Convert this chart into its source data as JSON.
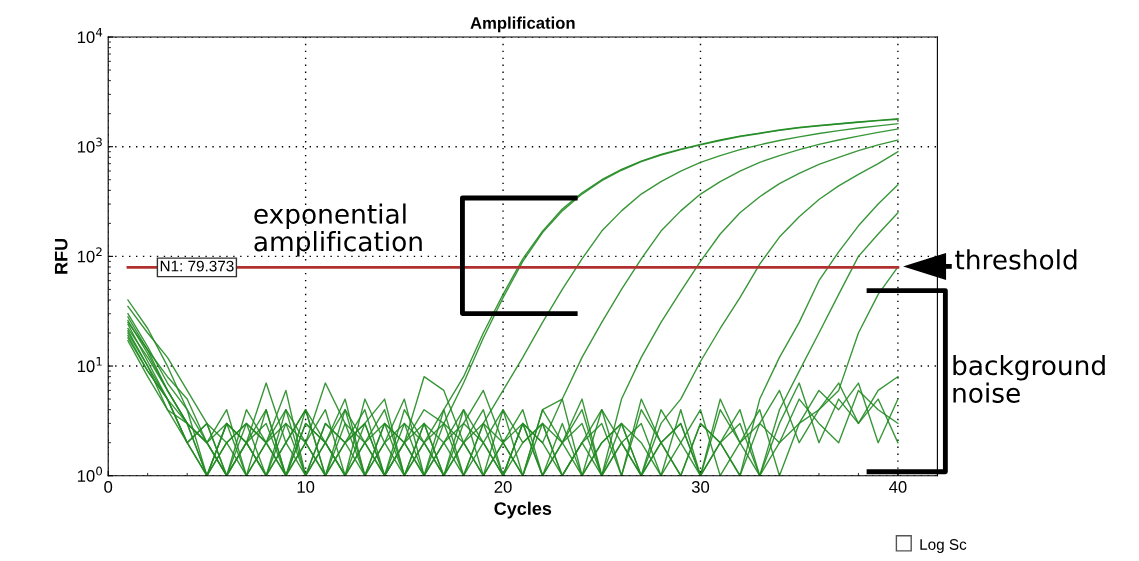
{
  "chart_data": {
    "type": "line",
    "title": "Amplification",
    "xlabel": "Cycles",
    "ylabel": "RFU",
    "log": "y",
    "grid": true,
    "line_style": "solid",
    "x": [
      1,
      2,
      3,
      4,
      5,
      6,
      7,
      8,
      9,
      10,
      11,
      12,
      13,
      14,
      15,
      16,
      17,
      18,
      19,
      20,
      21,
      22,
      23,
      24,
      25,
      26,
      27,
      28,
      29,
      30,
      31,
      32,
      33,
      34,
      35,
      36,
      37,
      38,
      39,
      40
    ],
    "xlim": [
      0,
      42
    ],
    "xticks": [
      0,
      10,
      20,
      30,
      40
    ],
    "ylim": [
      1,
      10000
    ],
    "yticks": [
      {
        "value": 1,
        "label": "10$^{0}$"
      },
      {
        "value": 10,
        "label": "10$^{1}$"
      },
      {
        "value": 100,
        "label": "10$^{2}$"
      },
      {
        "value": 1000,
        "label": "10$^{3}$"
      },
      {
        "value": 10000,
        "label": "10$^{4}$"
      }
    ],
    "ref_lines": [
      {
        "axis": "y",
        "value": 79.373,
        "label": "N1: 79.373",
        "color": "#b03030"
      }
    ],
    "annotations": [
      "exponential amplification",
      "threshold",
      "background noise",
      "Log Sc"
    ],
    "series": [
      {
        "color": "#228b22",
        "values": [
          30,
          15,
          7,
          4,
          2,
          3,
          1,
          2,
          4,
          1,
          3,
          2,
          1,
          2,
          3,
          1,
          4,
          8,
          20,
          45,
          95,
          170,
          270,
          380,
          500,
          620,
          740,
          850,
          950,
          1050,
          1150,
          1250,
          1330,
          1420,
          1500,
          1560,
          1620,
          1680,
          1740,
          1800
        ]
      },
      {
        "color": "#228b22",
        "values": [
          28,
          14,
          6,
          3,
          1,
          2,
          3,
          1,
          2,
          4,
          1,
          2,
          3,
          5,
          1,
          2,
          3,
          7,
          18,
          42,
          90,
          165,
          260,
          370,
          490,
          610,
          730,
          840,
          940,
          1040,
          1140,
          1240,
          1320,
          1410,
          1490,
          1550,
          1610,
          1670,
          1730,
          1780
        ]
      },
      {
        "color": "#228b22",
        "values": [
          22,
          12,
          6,
          3,
          2,
          1,
          4,
          2,
          1,
          3,
          2,
          1,
          2,
          4,
          1,
          3,
          2,
          1,
          3,
          6,
          12,
          25,
          50,
          95,
          170,
          260,
          370,
          480,
          600,
          720,
          830,
          940,
          1040,
          1140,
          1230,
          1320,
          1400,
          1480,
          1550,
          1620
        ]
      },
      {
        "color": "#228b22",
        "values": [
          20,
          10,
          5,
          2,
          1,
          3,
          2,
          4,
          1,
          2,
          1,
          3,
          2,
          1,
          4,
          2,
          1,
          3,
          2,
          4,
          1,
          4,
          5,
          12,
          25,
          50,
          95,
          170,
          260,
          370,
          480,
          600,
          720,
          830,
          940,
          1050,
          1150,
          1250,
          1350,
          1450
        ]
      },
      {
        "color": "#228b22",
        "values": [
          26,
          13,
          6,
          3,
          2,
          4,
          1,
          2,
          3,
          1,
          2,
          5,
          1,
          3,
          2,
          1,
          2,
          4,
          1,
          2,
          3,
          1,
          2,
          4,
          1,
          5,
          12,
          25,
          48,
          90,
          160,
          250,
          350,
          460,
          570,
          690,
          800,
          920,
          1040,
          1150
        ]
      },
      {
        "color": "#228b22",
        "values": [
          24,
          11,
          5,
          2,
          3,
          1,
          2,
          1,
          3,
          2,
          4,
          1,
          2,
          3,
          1,
          2,
          4,
          1,
          3,
          2,
          1,
          3,
          2,
          1,
          4,
          2,
          1,
          3,
          5,
          11,
          22,
          42,
          85,
          150,
          230,
          330,
          440,
          560,
          700,
          900
        ]
      },
      {
        "color": "#228b22",
        "values": [
          21,
          10,
          4,
          3,
          1,
          2,
          3,
          2,
          1,
          4,
          2,
          1,
          3,
          1,
          2,
          3,
          1,
          2,
          4,
          1,
          3,
          2,
          1,
          2,
          3,
          1,
          4,
          2,
          1,
          3,
          2,
          1,
          5,
          12,
          25,
          60,
          110,
          190,
          300,
          450
        ]
      },
      {
        "color": "#228b22",
        "values": [
          19,
          9,
          5,
          2,
          1,
          3,
          2,
          1,
          2,
          1,
          3,
          2,
          4,
          1,
          2,
          1,
          3,
          2,
          1,
          2,
          4,
          1,
          3,
          1,
          2,
          3,
          1,
          2,
          3,
          1,
          2,
          4,
          1,
          4,
          9,
          20,
          45,
          100,
          160,
          250
        ]
      },
      {
        "color": "#228b22",
        "values": [
          17,
          8,
          4,
          2,
          3,
          1,
          2,
          3,
          1,
          2,
          1,
          4,
          2,
          1,
          3,
          2,
          1,
          2,
          3,
          1,
          2,
          3,
          1,
          2,
          1,
          2,
          3,
          1,
          2,
          4,
          1,
          2,
          3,
          2,
          3,
          4,
          6,
          20,
          45,
          80
        ]
      },
      {
        "color": "#228b22",
        "values": [
          35,
          20,
          12,
          6,
          3,
          2,
          1,
          4,
          1,
          3,
          2,
          1,
          5,
          2,
          1,
          3,
          1,
          4,
          2,
          1,
          3,
          1,
          2,
          5,
          1,
          3,
          2,
          1,
          4,
          1,
          2,
          3,
          1,
          2,
          5,
          3,
          2,
          6,
          4,
          3
        ]
      },
      {
        "color": "#228b22",
        "values": [
          25,
          14,
          8,
          5,
          2,
          1,
          3,
          2,
          6,
          1,
          2,
          4,
          1,
          3,
          2,
          8,
          6,
          2,
          1,
          4,
          2,
          3,
          1,
          2,
          4,
          1,
          5,
          2,
          1,
          3,
          2,
          1,
          3,
          6,
          2,
          4,
          7,
          3,
          5,
          2
        ]
      },
      {
        "color": "#228b22",
        "values": [
          40,
          22,
          10,
          4,
          1,
          3,
          2,
          1,
          4,
          2,
          7,
          3,
          1,
          2,
          5,
          1,
          2,
          3,
          6,
          2,
          1,
          4,
          2,
          3,
          1,
          2,
          1,
          4,
          2,
          1,
          5,
          2,
          4,
          1,
          3,
          6,
          4,
          7,
          2,
          5
        ]
      },
      {
        "color": "#228b22",
        "values": [
          18,
          9,
          5,
          3,
          2,
          1,
          2,
          7,
          2,
          4,
          1,
          2,
          3,
          1,
          2,
          4,
          3,
          1,
          2,
          1,
          3,
          2,
          5,
          1,
          2,
          3,
          1,
          2,
          3,
          1,
          4,
          2,
          1,
          3,
          7,
          2,
          5,
          3,
          6,
          8
        ]
      }
    ]
  }
}
